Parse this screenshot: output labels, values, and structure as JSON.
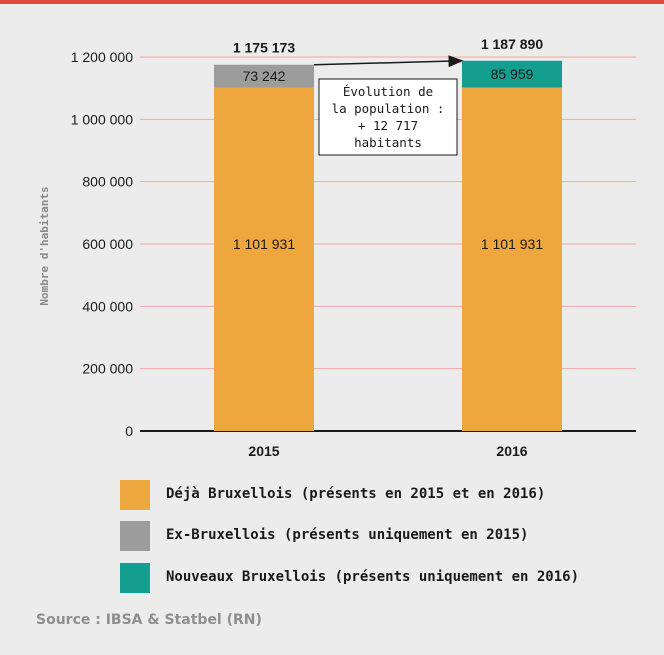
{
  "chart_data": {
    "type": "bar",
    "stacked": true,
    "categories": [
      "2015",
      "2016"
    ],
    "series": [
      {
        "name": "Déjà Bruxellois (présents en 2015 et en 2016)",
        "values": [
          1101931,
          1101931
        ],
        "labels": [
          "1 101 931",
          "1 101 931"
        ],
        "color": "#eea73f"
      },
      {
        "name": "Ex-Bruxellois (présents uniquement en 2015)",
        "values": [
          73242,
          0
        ],
        "labels": [
          "73 242",
          ""
        ],
        "color": "#9c9c9c"
      },
      {
        "name": "Nouveaux Bruxellois (présents uniquement en 2016)",
        "values": [
          0,
          85959
        ],
        "labels": [
          "",
          "85 959"
        ],
        "color": "#149e8f"
      }
    ],
    "totals": [
      1175173,
      1187890
    ],
    "total_labels": [
      "1 175 173",
      "1 187 890"
    ],
    "ylabel": "Nombre d'habitants",
    "ylim": [
      0,
      1200000
    ],
    "yticks": [
      0,
      200000,
      400000,
      600000,
      800000,
      1000000,
      1200000
    ],
    "ytick_labels": [
      "0",
      "200 000",
      "400 000",
      "600 000",
      "800 000",
      "1 000 000",
      "1 200 000"
    ],
    "grid": true,
    "annotation": [
      "Évolution de",
      "la population :",
      "+ 12 717",
      "habitants"
    ],
    "legend_position": "bottom",
    "source": "Source : IBSA & Statbel (RN)"
  }
}
